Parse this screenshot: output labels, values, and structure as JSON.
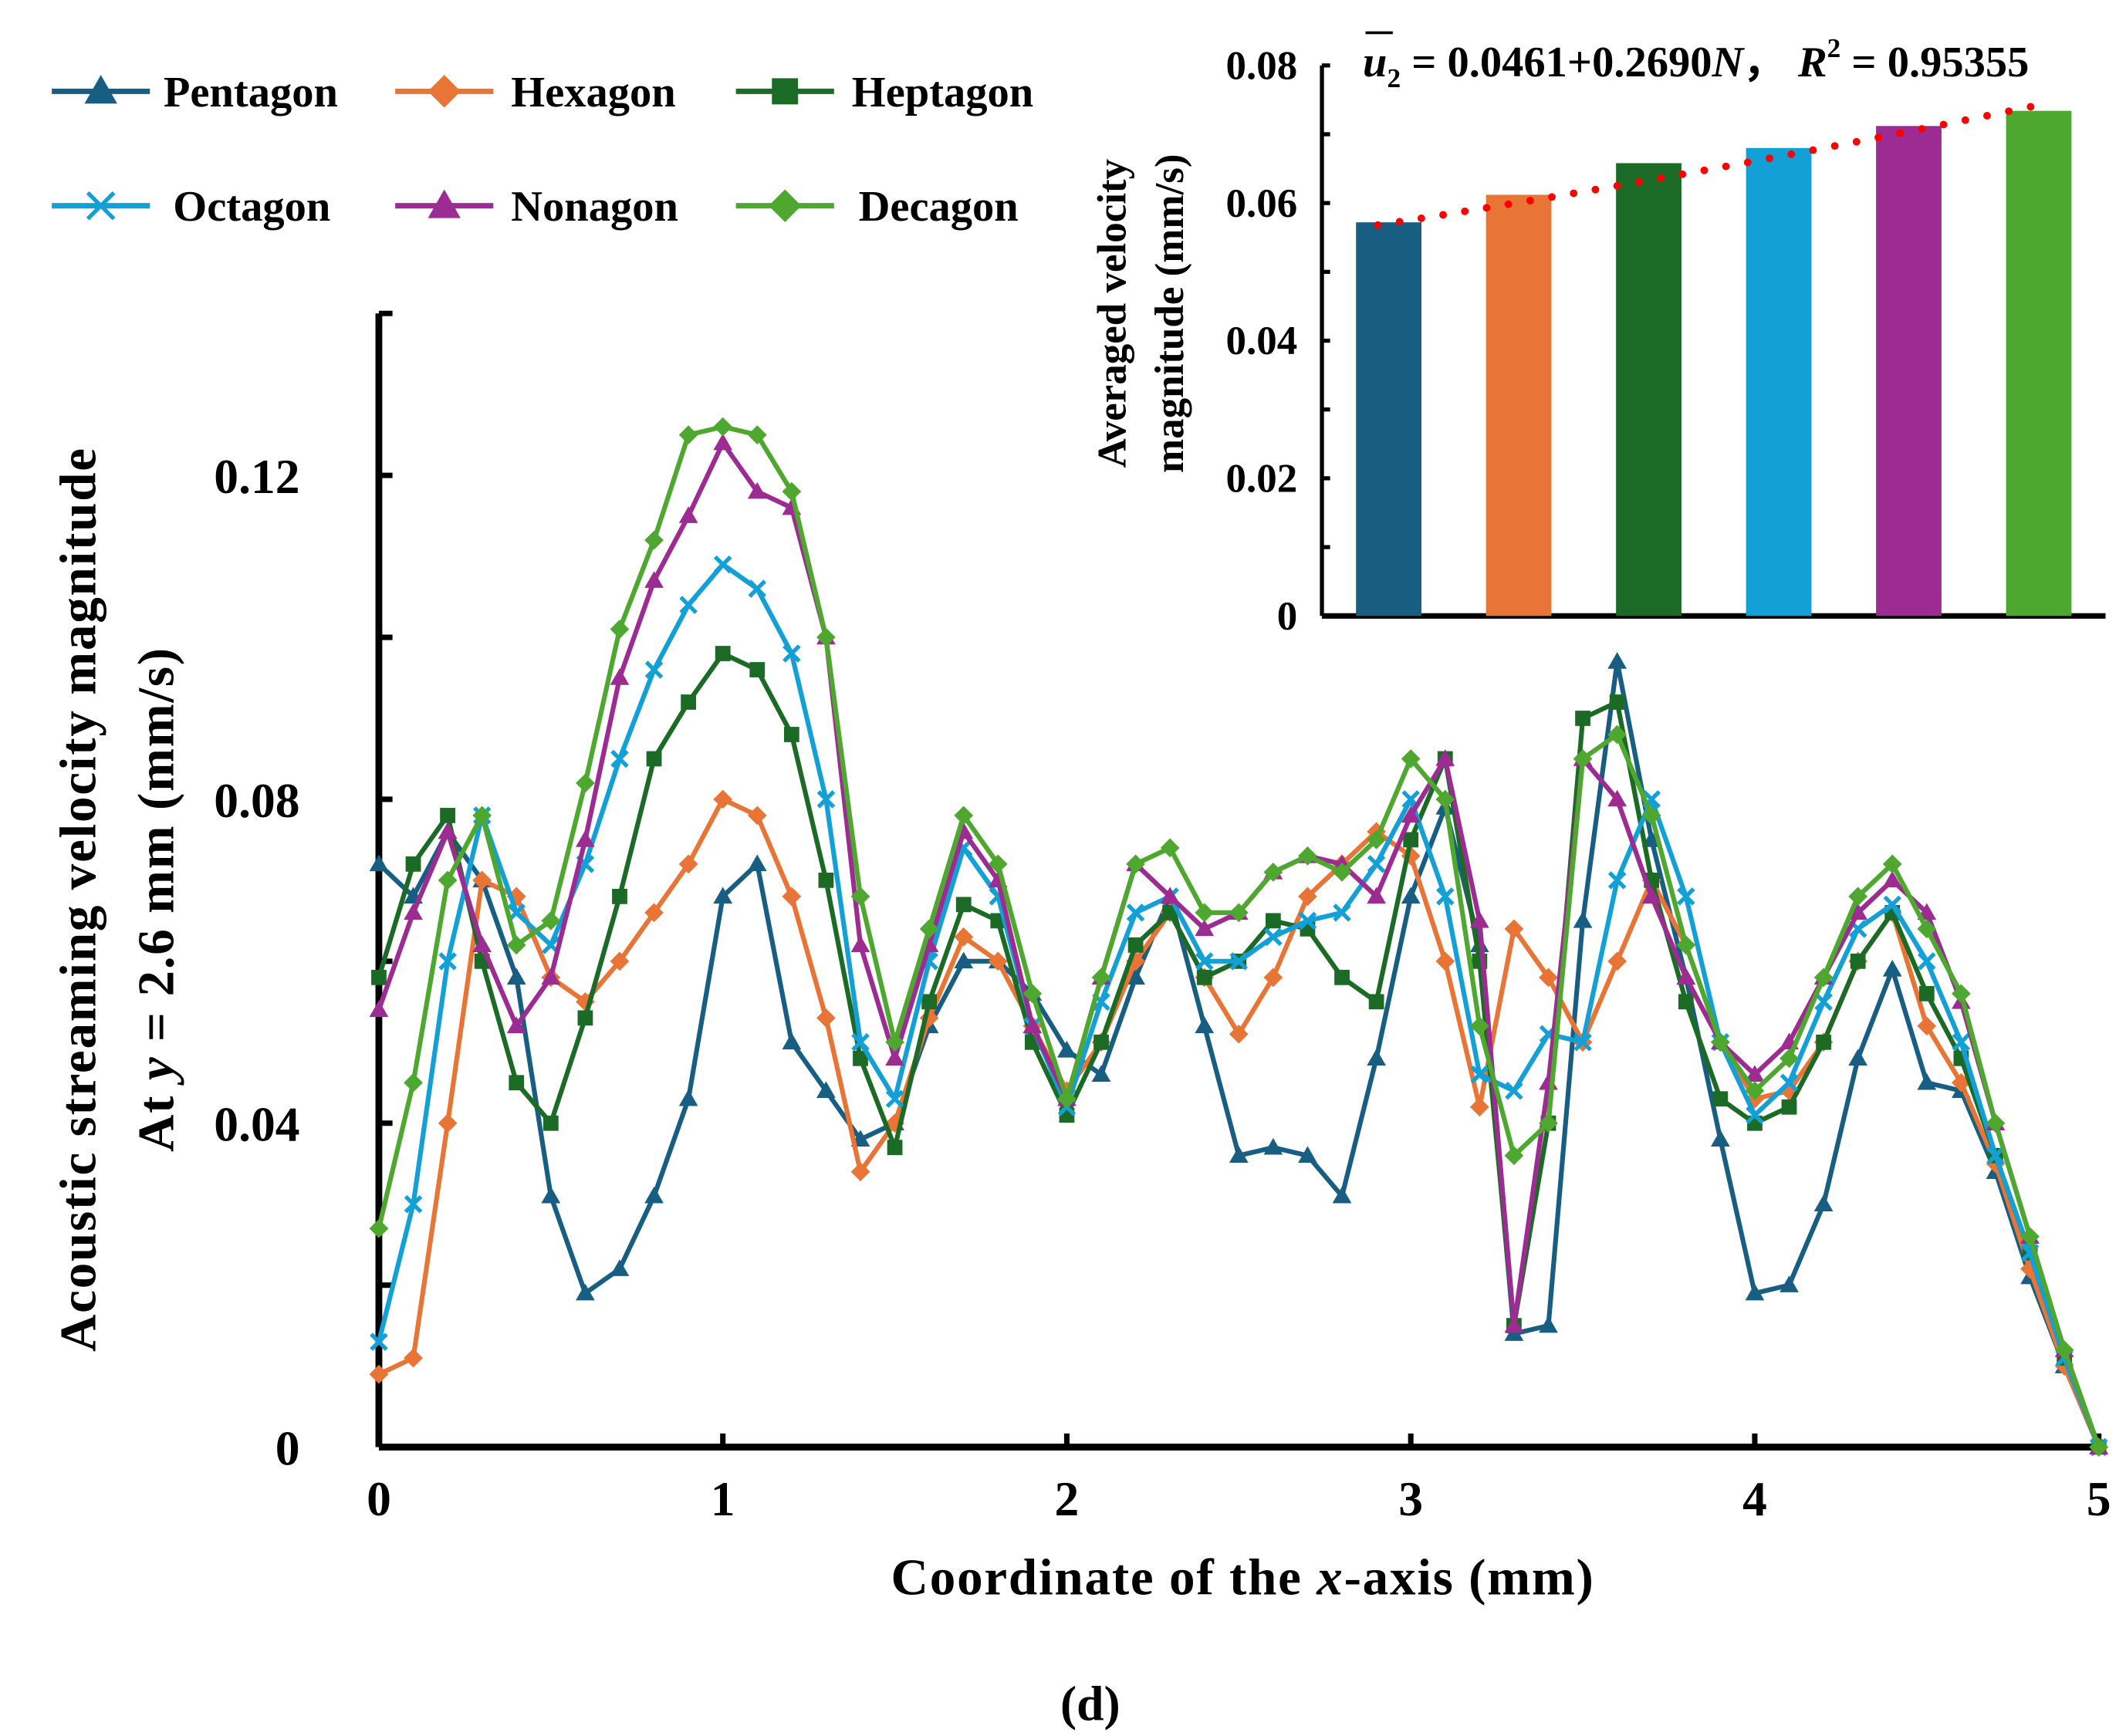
{
  "caption": "(d)",
  "chart_data": [
    {
      "type": "line",
      "xlabel_parts": [
        "Coordinate of the ",
        "x",
        "-axis  (mm)"
      ],
      "ylabel_line1": "Acoustic streaming velocity magnitude",
      "ylabel_line2_parts": [
        "At ",
        "y",
        " = 2.6 mm  (mm/s)"
      ],
      "xlim": [
        0,
        5
      ],
      "ylim": [
        0,
        0.14
      ],
      "xticks": [
        0,
        1,
        2,
        3,
        4,
        5
      ],
      "xtick_labels": [
        "0",
        "1",
        "2",
        "3",
        "4",
        "5"
      ],
      "yticks": [
        0,
        0.04,
        0.08,
        0.12
      ],
      "ytick_labels": [
        "0",
        "0.04",
        "0.08",
        "0.12"
      ],
      "legend_position": "top-left",
      "x": [
        0,
        0.1,
        0.2,
        0.3,
        0.4,
        0.5,
        0.6,
        0.7,
        0.8,
        0.9,
        1.0,
        1.1,
        1.2,
        1.3,
        1.4,
        1.5,
        1.6,
        1.7,
        1.8,
        1.9,
        2.0,
        2.1,
        2.2,
        2.3,
        2.4,
        2.5,
        2.6,
        2.7,
        2.8,
        2.9,
        3.0,
        3.1,
        3.2,
        3.3,
        3.4,
        3.5,
        3.6,
        3.7,
        3.8,
        3.9,
        4.0,
        4.1,
        4.2,
        4.3,
        4.4,
        4.5,
        4.6,
        4.7,
        4.8,
        4.9,
        5.0
      ],
      "series": [
        {
          "name": "Pentagon",
          "color": "#175e82",
          "marker": "triangle",
          "values": [
            0.072,
            0.068,
            0.076,
            0.07,
            0.058,
            0.031,
            0.019,
            0.022,
            0.031,
            0.043,
            0.068,
            0.072,
            0.05,
            0.044,
            0.038,
            0.04,
            0.052,
            0.06,
            0.06,
            0.056,
            0.049,
            0.046,
            0.058,
            0.068,
            0.052,
            0.036,
            0.037,
            0.036,
            0.031,
            0.048,
            0.068,
            0.079,
            0.062,
            0.014,
            0.015,
            0.065,
            0.097,
            0.075,
            0.058,
            0.038,
            0.019,
            0.02,
            0.03,
            0.048,
            0.059,
            0.045,
            0.044,
            0.034,
            0.021,
            0.01,
            0.0
          ]
        },
        {
          "name": "Hexagon",
          "color": "#e87435",
          "marker": "diamond",
          "values": [
            0.009,
            0.011,
            0.04,
            0.07,
            0.068,
            0.058,
            0.055,
            0.06,
            0.066,
            0.072,
            0.08,
            0.078,
            0.068,
            0.053,
            0.034,
            0.04,
            0.053,
            0.063,
            0.06,
            0.052,
            0.044,
            0.05,
            0.06,
            0.066,
            0.058,
            0.051,
            0.058,
            0.068,
            0.072,
            0.076,
            0.073,
            0.06,
            0.042,
            0.064,
            0.058,
            0.05,
            0.06,
            0.07,
            0.062,
            0.05,
            0.043,
            0.044,
            0.05,
            0.06,
            0.066,
            0.052,
            0.045,
            0.035,
            0.022,
            0.01,
            0.0
          ]
        },
        {
          "name": "Heptagon",
          "color": "#1b6b26",
          "marker": "square",
          "values": [
            0.058,
            0.072,
            0.078,
            0.06,
            0.045,
            0.04,
            0.053,
            0.068,
            0.085,
            0.092,
            0.098,
            0.096,
            0.088,
            0.07,
            0.048,
            0.037,
            0.055,
            0.067,
            0.065,
            0.05,
            0.041,
            0.05,
            0.062,
            0.066,
            0.058,
            0.06,
            0.065,
            0.064,
            0.058,
            0.055,
            0.075,
            0.085,
            0.06,
            0.015,
            0.04,
            0.09,
            0.092,
            0.07,
            0.055,
            0.043,
            0.04,
            0.042,
            0.05,
            0.06,
            0.066,
            0.056,
            0.048,
            0.036,
            0.024,
            0.011,
            0.0
          ]
        },
        {
          "name": "Octagon",
          "color": "#12a0d7",
          "marker": "x",
          "values": [
            0.013,
            0.03,
            0.06,
            0.078,
            0.066,
            0.062,
            0.072,
            0.085,
            0.096,
            0.104,
            0.109,
            0.106,
            0.098,
            0.08,
            0.05,
            0.043,
            0.06,
            0.074,
            0.068,
            0.052,
            0.042,
            0.055,
            0.066,
            0.068,
            0.06,
            0.06,
            0.063,
            0.065,
            0.066,
            0.072,
            0.08,
            0.068,
            0.046,
            0.044,
            0.051,
            0.05,
            0.07,
            0.08,
            0.068,
            0.05,
            0.041,
            0.045,
            0.055,
            0.064,
            0.067,
            0.06,
            0.05,
            0.036,
            0.024,
            0.011,
            0.0
          ]
        },
        {
          "name": "Nonagon",
          "color": "#9c2b92",
          "marker": "triangle",
          "values": [
            0.054,
            0.066,
            0.076,
            0.062,
            0.052,
            0.058,
            0.075,
            0.095,
            0.107,
            0.115,
            0.124,
            0.118,
            0.116,
            0.1,
            0.062,
            0.048,
            0.062,
            0.076,
            0.07,
            0.052,
            0.043,
            0.058,
            0.072,
            0.068,
            0.064,
            0.066,
            0.071,
            0.073,
            0.072,
            0.068,
            0.078,
            0.085,
            0.065,
            0.015,
            0.045,
            0.085,
            0.08,
            0.068,
            0.058,
            0.05,
            0.046,
            0.05,
            0.058,
            0.066,
            0.07,
            0.066,
            0.055,
            0.04,
            0.026,
            0.012,
            0.0
          ]
        },
        {
          "name": "Decagon",
          "color": "#4ea72e",
          "marker": "diamond",
          "values": [
            0.027,
            0.045,
            0.07,
            0.078,
            0.062,
            0.065,
            0.082,
            0.101,
            0.112,
            0.125,
            0.126,
            0.125,
            0.118,
            0.1,
            0.068,
            0.05,
            0.064,
            0.078,
            0.072,
            0.056,
            0.043,
            0.058,
            0.072,
            0.074,
            0.066,
            0.066,
            0.071,
            0.073,
            0.071,
            0.075,
            0.085,
            0.08,
            0.052,
            0.036,
            0.04,
            0.085,
            0.088,
            0.078,
            0.062,
            0.05,
            0.044,
            0.048,
            0.058,
            0.068,
            0.072,
            0.064,
            0.056,
            0.04,
            0.026,
            0.012,
            0.0
          ]
        }
      ]
    },
    {
      "type": "bar",
      "inset": true,
      "ylabel_line1": "Averaged velocity",
      "ylabel_line2": "magnitude (mm/s)",
      "ylim": [
        0,
        0.08
      ],
      "yticks": [
        0,
        0.02,
        0.04,
        0.06,
        0.08
      ],
      "ytick_labels": [
        "0",
        "0.02",
        "0.04",
        "0.06",
        "0.08"
      ],
      "categories": [
        "Pentagon",
        "Hexagon",
        "Heptagon",
        "Octagon",
        "Nonagon",
        "Decagon"
      ],
      "values": [
        0.0572,
        0.0612,
        0.0658,
        0.068,
        0.0712,
        0.0734
      ],
      "colors": [
        "#175e82",
        "#e87435",
        "#1b6b26",
        "#12a0d7",
        "#9c2b92",
        "#4ea72e"
      ],
      "trendline": {
        "color": "#ff0000",
        "style": "dotted",
        "start": 0.0568,
        "end": 0.074
      },
      "annotation": {
        "lhs": "u",
        "lhs_sub": "2",
        "rhs": " = 0.0461+0.2690",
        "var": "N",
        "sep": "，",
        "r": "R",
        "r_sup": "2",
        "r_val": " = 0.95355"
      }
    }
  ]
}
